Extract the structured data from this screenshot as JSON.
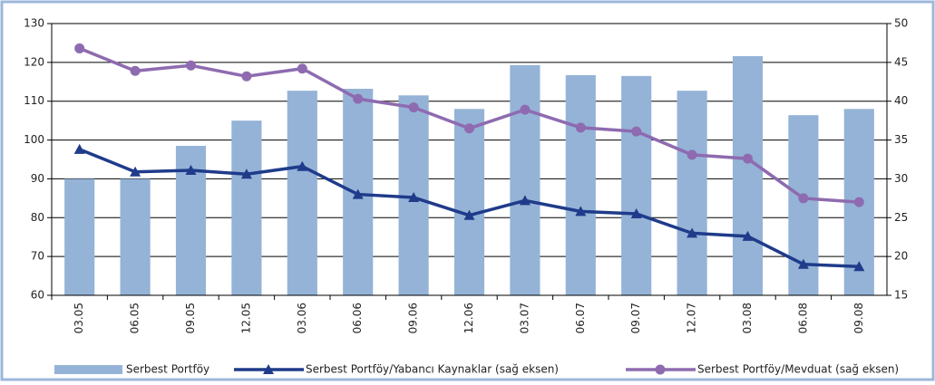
{
  "chart_data": {
    "type": "combo",
    "categories": [
      "03.05",
      "06.05",
      "09.05",
      "12.05",
      "03.06",
      "06.06",
      "09.06",
      "12.06",
      "03.07",
      "06.07",
      "09.07",
      "12.07",
      "03.08",
      "06.08",
      "09.08"
    ],
    "series": [
      {
        "name": "Serbest Portföy",
        "type": "bar",
        "color": "#95b3d7",
        "values": [
          90,
          90,
          98.5,
          105,
          112.7,
          113.2,
          111.5,
          108,
          119.3,
          116.7,
          116.5,
          112.7,
          121.6,
          106.4,
          108
        ]
      },
      {
        "name": "Serbest Portföy/Yabancı Kaynaklar (sağ eksen)",
        "type": "line",
        "marker": "triangle",
        "axis": "y2",
        "color": "#1f3b8a",
        "values": [
          33.8,
          30.9,
          31.1,
          30.6,
          31.6,
          28.0,
          27.6,
          25.3,
          27.2,
          25.8,
          25.5,
          23.0,
          22.6,
          19.0,
          18.7
        ]
      },
      {
        "name": "Serbest Portföy/Mevduat (sağ eksen)",
        "type": "line",
        "marker": "circle",
        "axis": "y2",
        "color": "#8e6bb0",
        "values": [
          46.8,
          43.9,
          44.6,
          43.2,
          44.2,
          40.3,
          39.2,
          36.5,
          38.9,
          36.6,
          36.1,
          33.1,
          32.6,
          27.5,
          27.0
        ]
      }
    ],
    "ylim": [
      60,
      130
    ],
    "yticks": [
      60,
      70,
      80,
      90,
      100,
      110,
      120,
      130
    ],
    "y2lim": [
      15,
      50
    ],
    "y2ticks": [
      15,
      20,
      25,
      30,
      35,
      40,
      45,
      50
    ],
    "grid": true,
    "legend": "bottom"
  }
}
